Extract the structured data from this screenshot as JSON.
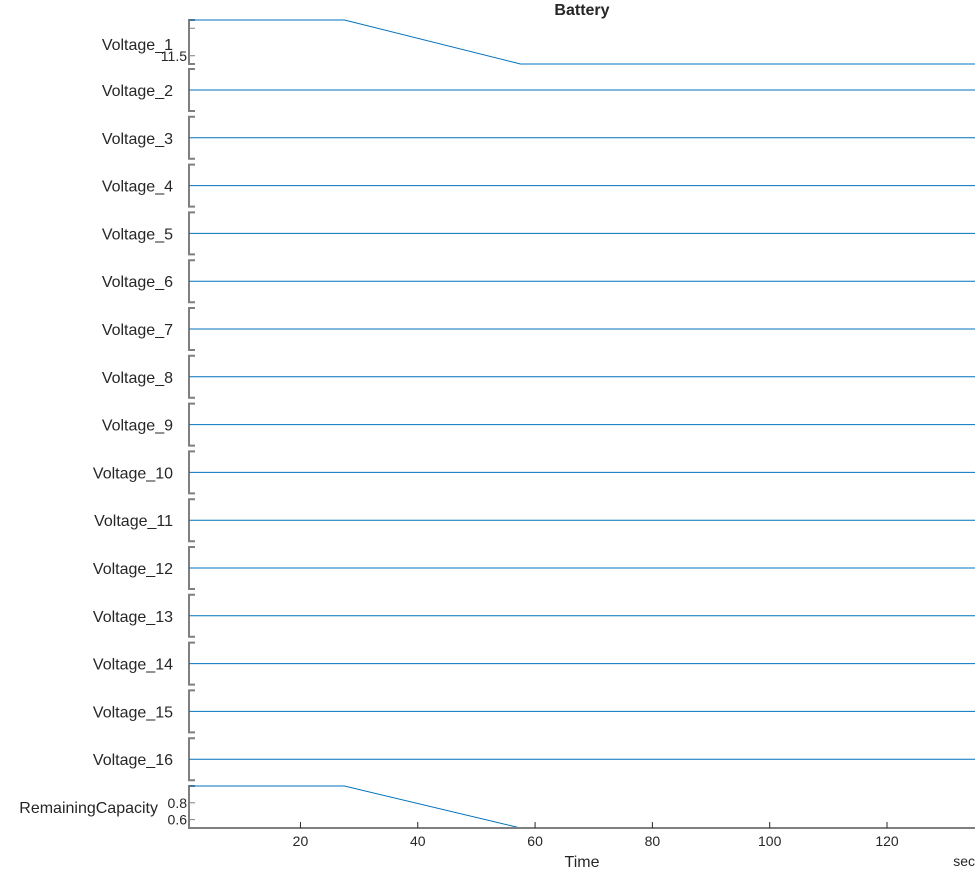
{
  "chart_data": {
    "type": "line",
    "layout": "stacked",
    "title": "Battery",
    "xlabel": "Time",
    "xunit": "sec",
    "xlim": [
      1,
      135
    ],
    "xticks": [
      20,
      40,
      60,
      80,
      100,
      120
    ],
    "line_color": "#0072BD",
    "axis_color": "#7F7F7F",
    "series": [
      {
        "name": "Voltage_1",
        "x": [
          1,
          27.5,
          57.5,
          135
        ],
        "y": [
          12.15,
          12.15,
          11.35,
          11.35
        ],
        "ylim": [
          11.35,
          12.15
        ],
        "yticks": [
          11.5,
          12
        ],
        "yticklabels": [
          "11.5",
          ""
        ]
      },
      {
        "name": "Voltage_2",
        "constant": true
      },
      {
        "name": "Voltage_3",
        "constant": true
      },
      {
        "name": "Voltage_4",
        "constant": true
      },
      {
        "name": "Voltage_5",
        "constant": true
      },
      {
        "name": "Voltage_6",
        "constant": true
      },
      {
        "name": "Voltage_7",
        "constant": true
      },
      {
        "name": "Voltage_8",
        "constant": true
      },
      {
        "name": "Voltage_9",
        "constant": true
      },
      {
        "name": "Voltage_10",
        "constant": true
      },
      {
        "name": "Voltage_11",
        "constant": true
      },
      {
        "name": "Voltage_12",
        "constant": true
      },
      {
        "name": "Voltage_13",
        "constant": true
      },
      {
        "name": "Voltage_14",
        "constant": true
      },
      {
        "name": "Voltage_15",
        "constant": true
      },
      {
        "name": "Voltage_16",
        "constant": true
      },
      {
        "name": "RemainingCapacity",
        "x": [
          1,
          27.5,
          57.5,
          135
        ],
        "y": [
          1.0,
          1.0,
          0.5,
          0.5
        ],
        "ylim": [
          0.5,
          1.0
        ],
        "yticks": [
          0.6,
          0.8
        ],
        "yticklabels": [
          "0.6",
          "0.8"
        ]
      }
    ]
  }
}
